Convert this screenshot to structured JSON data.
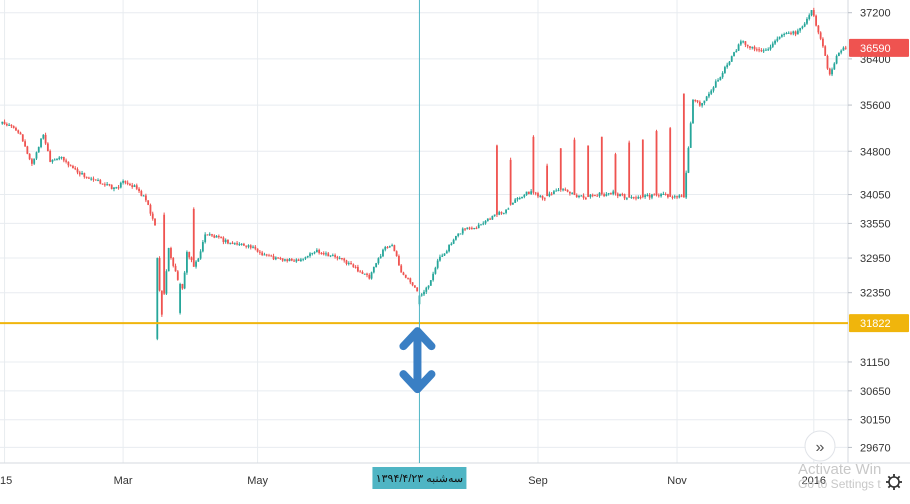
{
  "chart_data": {
    "type": "candlestick",
    "xlabels": [
      {
        "label": "15",
        "t": 0
      },
      {
        "label": "Mar",
        "t": 52
      },
      {
        "label": "May",
        "t": 111
      },
      {
        "label": "Sep",
        "t": 234
      },
      {
        "label": "Nov",
        "t": 295
      },
      {
        "label": "2016",
        "t": 355
      }
    ],
    "crosshair": {
      "t": 182,
      "label": "سه‌شنبه ۱۳۹۴/۴/۲۳",
      "color": "#4fb5c4"
    },
    "y_ticks": [
      37200,
      36400,
      35600,
      34800,
      34050,
      33550,
      32950,
      32350,
      31150,
      30650,
      30150,
      29670
    ],
    "ylim": [
      29400,
      37420
    ],
    "xlim": [
      -2,
      370
    ],
    "price_line": {
      "value": 31822,
      "label": "31822",
      "color": "#f0b50c"
    },
    "last_price": {
      "value": 36590,
      "label": "36590",
      "color": "#ef5350"
    },
    "colors": {
      "up": "#26a69a",
      "down": "#ef5350",
      "grid": "#e8ecf0",
      "text": "#333333",
      "accent": "#3a7fc4"
    },
    "nodes": [
      [
        0,
        35280
      ],
      [
        6,
        35150
      ],
      [
        12,
        34580
      ],
      [
        17,
        35100
      ],
      [
        20,
        34650
      ],
      [
        24,
        34700
      ],
      [
        32,
        34450
      ],
      [
        38,
        34300
      ],
      [
        43,
        34250
      ],
      [
        48,
        34150
      ],
      [
        53,
        34280
      ],
      [
        58,
        34150
      ],
      [
        62,
        33950
      ],
      [
        66,
        33500
      ],
      [
        68,
        32400
      ],
      [
        69,
        31950
      ],
      [
        72,
        33100
      ],
      [
        75,
        32700
      ],
      [
        78,
        32400
      ],
      [
        80,
        33050
      ],
      [
        83,
        32800
      ],
      [
        86,
        33050
      ],
      [
        88,
        33380
      ],
      [
        93,
        33300
      ],
      [
        100,
        33200
      ],
      [
        106,
        33180
      ],
      [
        112,
        33050
      ],
      [
        118,
        32950
      ],
      [
        125,
        32900
      ],
      [
        131,
        32950
      ],
      [
        137,
        33080
      ],
      [
        143,
        33000
      ],
      [
        149,
        32900
      ],
      [
        155,
        32750
      ],
      [
        160,
        32600
      ],
      [
        166,
        33100
      ],
      [
        170,
        33200
      ],
      [
        174,
        32700
      ],
      [
        178,
        32550
      ],
      [
        182,
        32300
      ],
      [
        186,
        32500
      ],
      [
        190,
        32900
      ],
      [
        195,
        33150
      ],
      [
        201,
        33450
      ],
      [
        207,
        33500
      ],
      [
        213,
        33650
      ],
      [
        219,
        33750
      ],
      [
        225,
        34000
      ],
      [
        231,
        34100
      ],
      [
        237,
        34000
      ],
      [
        243,
        34150
      ],
      [
        249,
        34050
      ],
      [
        255,
        34000
      ],
      [
        261,
        34050
      ],
      [
        267,
        34080
      ],
      [
        273,
        34000
      ],
      [
        278,
        34000
      ],
      [
        283,
        34020
      ],
      [
        288,
        34050
      ],
      [
        293,
        34000
      ],
      [
        298,
        34000
      ],
      [
        302,
        35700
      ],
      [
        306,
        35600
      ],
      [
        312,
        36000
      ],
      [
        318,
        36350
      ],
      [
        323,
        36700
      ],
      [
        330,
        36550
      ],
      [
        336,
        36600
      ],
      [
        341,
        36800
      ],
      [
        347,
        36850
      ],
      [
        351,
        37000
      ],
      [
        354,
        37250
      ],
      [
        356,
        37000
      ],
      [
        359,
        36600
      ],
      [
        362,
        36100
      ],
      [
        365,
        36450
      ],
      [
        368,
        36590
      ]
    ],
    "spikes": [
      [
        67,
        31550
      ],
      [
        70,
        33700
      ],
      [
        77,
        32000
      ],
      [
        83,
        33800
      ],
      [
        182,
        32150
      ],
      [
        216,
        34900
      ],
      [
        222,
        34650
      ],
      [
        232,
        35050
      ],
      [
        238,
        34550
      ],
      [
        244,
        34850
      ],
      [
        250,
        35000
      ],
      [
        256,
        34900
      ],
      [
        262,
        35050
      ],
      [
        268,
        34750
      ],
      [
        274,
        34950
      ],
      [
        280,
        35000
      ],
      [
        286,
        35150
      ],
      [
        292,
        35200
      ],
      [
        298,
        35800
      ]
    ]
  }
}
